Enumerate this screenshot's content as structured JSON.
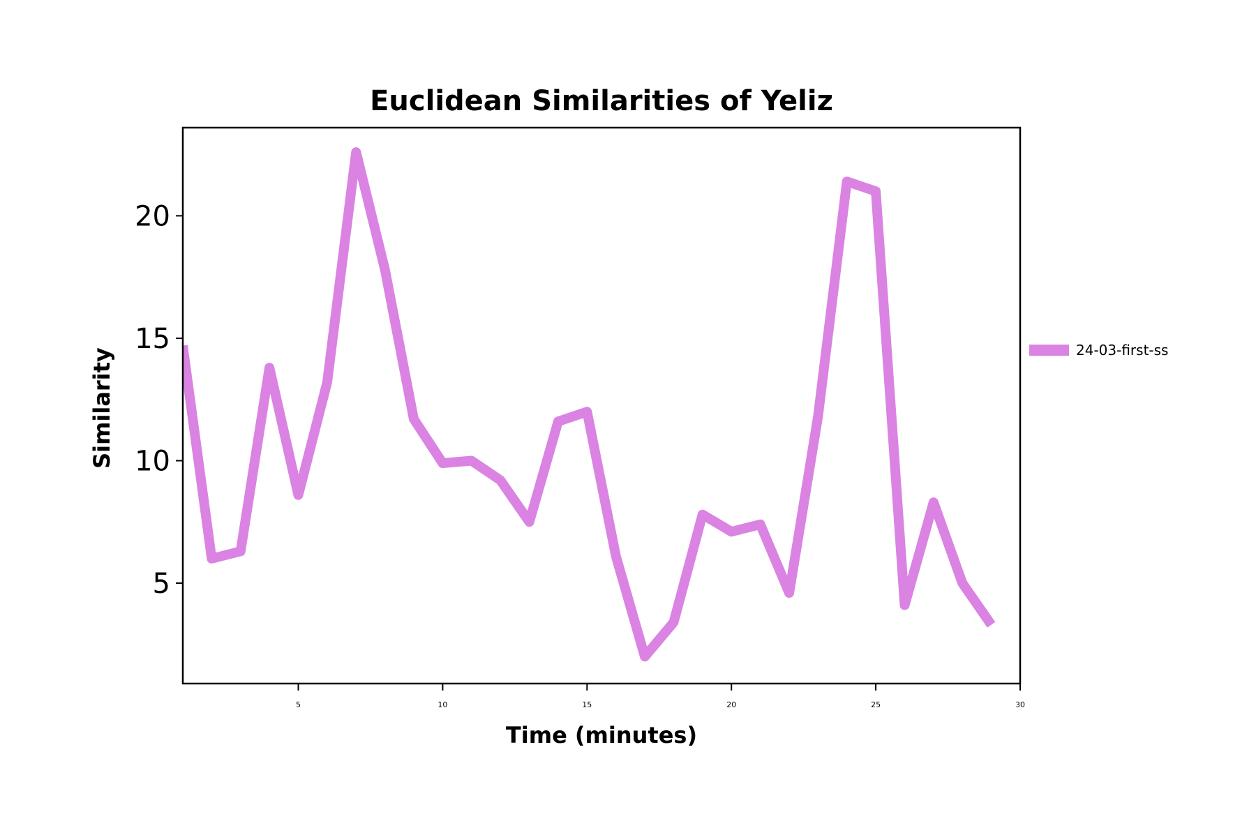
{
  "chart_data": {
    "type": "line",
    "title": "Euclidean Similarities of Yeliz",
    "xlabel": "Time (minutes)",
    "ylabel": "Similarity",
    "xlim": [
      1,
      30
    ],
    "ylim": [
      0.9,
      23.6
    ],
    "xticks": [
      5,
      10,
      15,
      20,
      25,
      30
    ],
    "yticks": [
      5,
      10,
      15,
      20
    ],
    "grid": false,
    "legend_position": "right",
    "series": [
      {
        "name": "24-03-first-ss",
        "color": "#da83e3",
        "x": [
          1,
          2,
          3,
          4,
          5,
          6,
          7,
          8,
          9,
          10,
          11,
          12,
          13,
          14,
          15,
          16,
          17,
          18,
          19,
          20,
          21,
          22,
          23,
          24,
          25,
          26,
          27,
          28,
          29
        ],
        "y": [
          14.7,
          6.0,
          6.3,
          13.8,
          8.6,
          13.2,
          22.6,
          17.8,
          11.7,
          9.9,
          10.0,
          9.2,
          7.5,
          11.6,
          12.0,
          6.1,
          2.0,
          3.4,
          7.8,
          7.1,
          7.4,
          4.6,
          11.8,
          21.4,
          21.0,
          4.1,
          8.3,
          5.0,
          3.3
        ]
      }
    ]
  }
}
